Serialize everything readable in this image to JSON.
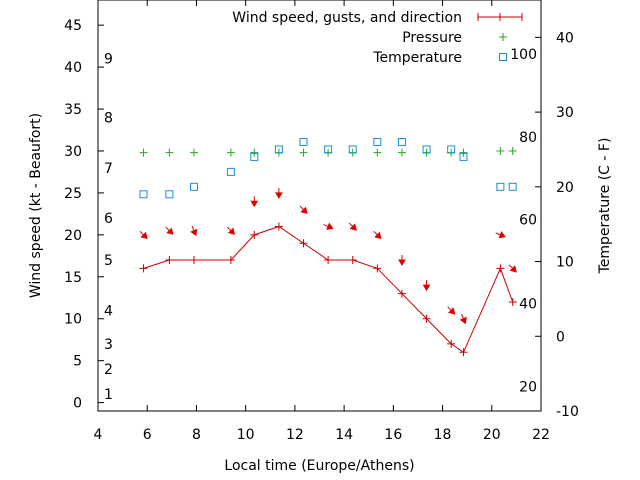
{
  "chart_data": {
    "type": "line",
    "title": "",
    "xlabel": "Local time (Europe/Athens)",
    "ylabel": "Wind speed (kt - Beaufort)",
    "y2label": "Temperature (C - F)",
    "xlim": [
      4,
      22
    ],
    "ylim": [
      -1,
      48
    ],
    "y2lim": [
      -10,
      45
    ],
    "x_ticks": [
      4,
      6,
      8,
      10,
      12,
      14,
      16,
      18,
      20,
      22
    ],
    "y_ticks": [
      0,
      5,
      10,
      15,
      20,
      25,
      30,
      35,
      40,
      45
    ],
    "y2_ticks": [
      -10,
      0,
      10,
      20,
      30,
      40
    ],
    "beaufort_labels": [
      {
        "kt": 1,
        "label": "1"
      },
      {
        "kt": 4,
        "label": "2"
      },
      {
        "kt": 7,
        "label": "3"
      },
      {
        "kt": 11,
        "label": "4"
      },
      {
        "kt": 17,
        "label": "5"
      },
      {
        "kt": 22,
        "label": "6"
      },
      {
        "kt": 28,
        "label": "7"
      },
      {
        "kt": 34,
        "label": "8"
      },
      {
        "kt": 41,
        "label": "9"
      }
    ],
    "fahrenheit_labels": [
      {
        "c": -6.7,
        "label": "20"
      },
      {
        "c": 4.4,
        "label": "40"
      },
      {
        "c": 15.6,
        "label": "60"
      },
      {
        "c": 26.7,
        "label": "80"
      },
      {
        "c": 37.8,
        "label": "100"
      }
    ],
    "grid": false,
    "legend": "top-right",
    "series": [
      {
        "name": "Wind speed, gusts, and direction",
        "color": "#cc0000",
        "x": [
          5.85,
          6.9,
          7.9,
          9.4,
          10.35,
          11.35,
          12.35,
          13.35,
          14.35,
          15.35,
          16.35,
          17.35,
          18.35,
          18.85,
          20.35,
          20.85
        ],
        "values": [
          16,
          17,
          17,
          17,
          20,
          21,
          19,
          17,
          17,
          16,
          13,
          10,
          7,
          6,
          16,
          12
        ]
      },
      {
        "name": "Pressure",
        "color": "#22aa22",
        "x": [
          5.85,
          6.9,
          7.9,
          9.4,
          10.35,
          11.35,
          12.35,
          13.35,
          14.35,
          15.35,
          16.35,
          17.35,
          18.35,
          18.85,
          20.35,
          20.85
        ],
        "values": [
          29.8,
          29.8,
          29.8,
          29.8,
          29.8,
          29.8,
          29.8,
          29.8,
          29.8,
          29.8,
          29.8,
          29.8,
          29.8,
          29.8,
          30.0,
          30.0
        ]
      },
      {
        "name": "Temperature",
        "color": "#1a8fd6",
        "x": [
          5.85,
          6.9,
          7.9,
          9.4,
          10.35,
          11.35,
          12.35,
          13.35,
          14.35,
          15.35,
          16.35,
          17.35,
          18.35,
          18.85,
          20.35,
          20.85
        ],
        "values": [
          19,
          19,
          20,
          22,
          24,
          25,
          26,
          25,
          25,
          26,
          26,
          25,
          25,
          24,
          20,
          20
        ]
      }
    ],
    "wind_arrows": {
      "x": [
        5.85,
        6.9,
        7.9,
        9.4,
        10.35,
        11.35,
        12.35,
        13.35,
        14.35,
        15.35,
        16.35,
        17.35,
        18.35,
        18.85,
        20.35,
        20.85
      ],
      "y": [
        20,
        20.5,
        20.5,
        20.5,
        24,
        25,
        23,
        21,
        21,
        20,
        17,
        14,
        11,
        10,
        20,
        16
      ],
      "direction": [
        "NW",
        "NW",
        "NNW",
        "NW",
        "N",
        "N",
        "NW",
        "WNW",
        "NW",
        "NW",
        "N",
        "N",
        "NW",
        "NNW",
        "WNW",
        "NW"
      ]
    }
  }
}
